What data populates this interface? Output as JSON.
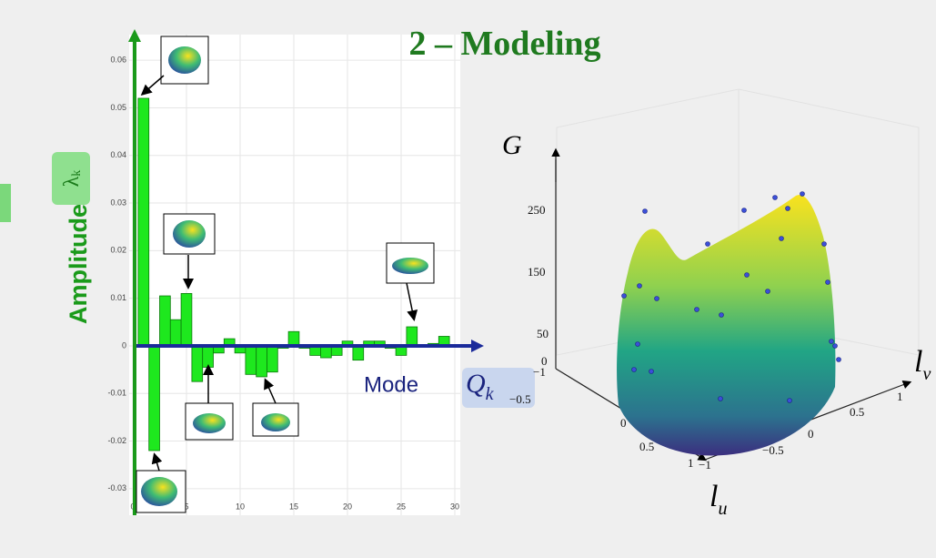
{
  "chart_data": {
    "type": "bar",
    "x": [
      1,
      2,
      3,
      4,
      5,
      6,
      7,
      8,
      9,
      10,
      11,
      12,
      13,
      14,
      15,
      16,
      17,
      18,
      19,
      20,
      21,
      22,
      23,
      24,
      25,
      26,
      27,
      28,
      29
    ],
    "values": [
      0.052,
      -0.022,
      0.0105,
      0.0055,
      0.011,
      -0.0075,
      -0.0045,
      -0.0015,
      0.0015,
      -0.0015,
      -0.006,
      -0.0065,
      -0.0055,
      -0.0005,
      0.003,
      -0.0005,
      -0.002,
      -0.0025,
      -0.002,
      0.001,
      -0.003,
      0.001,
      0.001,
      -0.0005,
      -0.002,
      0.004,
      0,
      0.0005,
      0.002
    ],
    "color": "#1ee81e",
    "xlim": [
      0,
      30
    ],
    "xticks": [
      0,
      5,
      10,
      15,
      20,
      25,
      30
    ],
    "ylim": [
      -0.035,
      0.065
    ],
    "yticks": [
      -0.03,
      -0.02,
      -0.01,
      0,
      0.01,
      0.02,
      0.03,
      0.04,
      0.05,
      0.06
    ],
    "grid": true,
    "title": "2 – Modeling",
    "ylabel": "Amplitude",
    "ylabel_symbol": "λ",
    "ylabel_symbol_sub": "k",
    "xlabel": "Mode",
    "xlabel_symbol": "Q",
    "xlabel_symbol_sub": "k"
  },
  "surface_plot": {
    "z_label": "G",
    "z_ticks": [
      "250",
      "150",
      "50",
      "0"
    ],
    "u_label": "l",
    "u_label_sub": "u",
    "u_ticks": [
      "−1",
      "−0.5",
      "0",
      "0.5",
      "1"
    ],
    "v_label": "l",
    "v_label_sub": "v",
    "v_ticks": [
      "−1",
      "−0.5",
      "0",
      "0.5",
      "1"
    ]
  }
}
